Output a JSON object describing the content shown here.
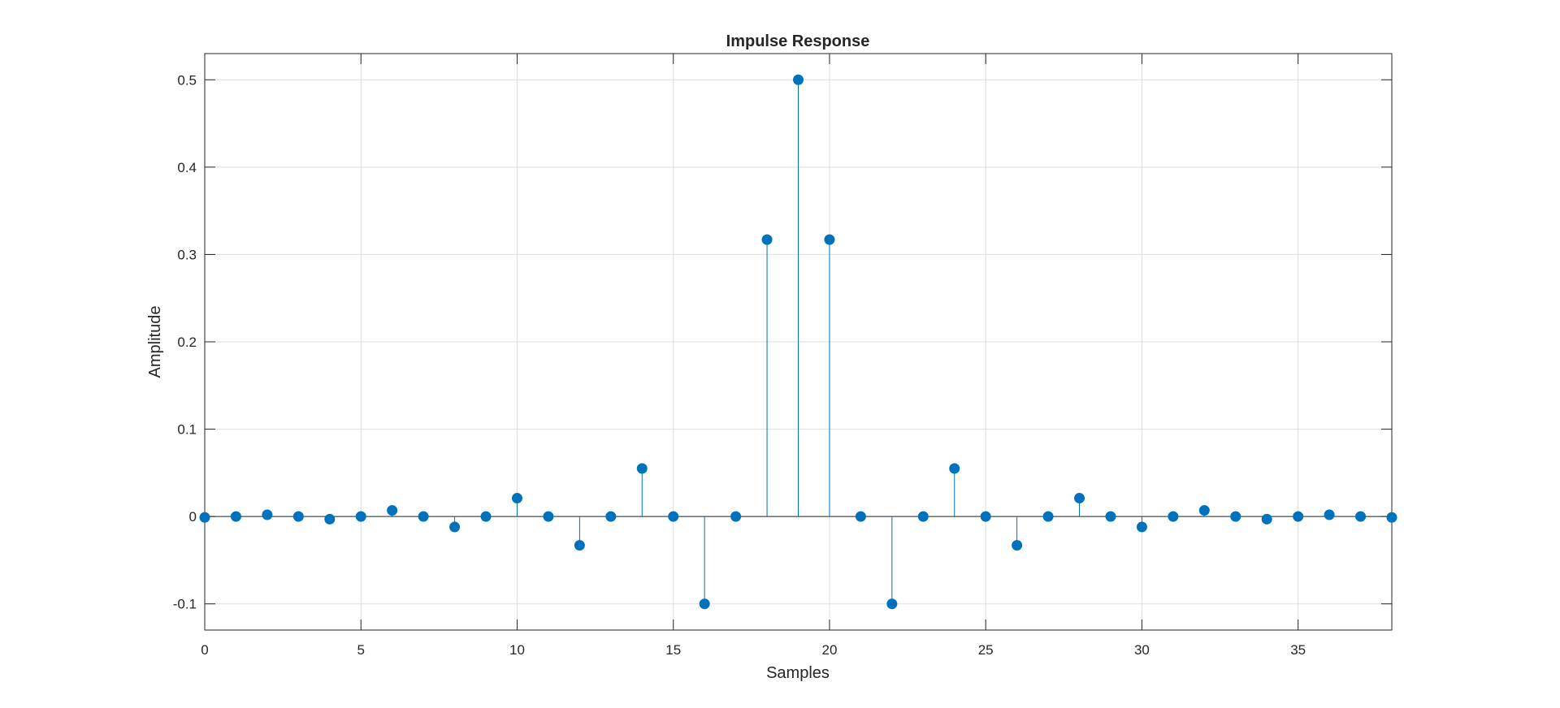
{
  "chart_data": {
    "type": "stem",
    "title": "Impulse Response",
    "xlabel": "Samples",
    "ylabel": "Amplitude",
    "xlim": [
      0,
      38
    ],
    "ylim": [
      -0.13,
      0.53
    ],
    "xticks": [
      0,
      5,
      10,
      15,
      20,
      25,
      30,
      35
    ],
    "yticks": [
      -0.1,
      0,
      0.1,
      0.2,
      0.3,
      0.4,
      0.5
    ],
    "ytick_labels": [
      "-0.1",
      "0",
      "0.1",
      "0.2",
      "0.3",
      "0.4",
      "0.5"
    ],
    "grid": true,
    "x": [
      0,
      1,
      2,
      3,
      4,
      5,
      6,
      7,
      8,
      9,
      10,
      11,
      12,
      13,
      14,
      15,
      16,
      17,
      18,
      19,
      20,
      21,
      22,
      23,
      24,
      25,
      26,
      27,
      28,
      29,
      30,
      31,
      32,
      33,
      34,
      35,
      36,
      37,
      38
    ],
    "values": [
      -0.001,
      0,
      0.002,
      0,
      -0.003,
      0,
      0.007,
      0,
      -0.012,
      0,
      0.021,
      0,
      -0.033,
      0,
      0.055,
      0,
      -0.1,
      0,
      0.317,
      0.5,
      0.317,
      0,
      -0.1,
      0,
      0.055,
      0,
      -0.033,
      0,
      0.021,
      0,
      -0.012,
      0,
      0.007,
      0,
      -0.003,
      0,
      0.002,
      0,
      -0.001
    ],
    "colors": {
      "stem": "#0072BD",
      "grid": "#dedede",
      "axes": "#262626"
    }
  }
}
